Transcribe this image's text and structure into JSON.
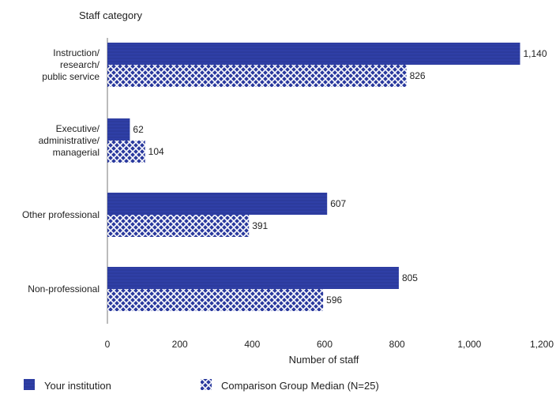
{
  "chart_data": {
    "type": "bar",
    "orientation": "horizontal",
    "ylabel": "Staff category",
    "xlabel": "Number of staff",
    "xlim": [
      0,
      1200
    ],
    "xticks": [
      0,
      200,
      400,
      600,
      800,
      1000,
      1200
    ],
    "xtick_labels": [
      "0",
      "200",
      "400",
      "600",
      "800",
      "1,000",
      "1,200"
    ],
    "categories": [
      [
        "Instruction/",
        "research/",
        "public service"
      ],
      [
        "Executive/",
        "administrative/",
        "managerial"
      ],
      [
        "Other professional"
      ],
      [
        "Non-professional"
      ]
    ],
    "series": [
      {
        "name": "Your institution",
        "values": [
          1140,
          62,
          607,
          805
        ],
        "labels": [
          "1,140",
          "62",
          "607",
          "805"
        ],
        "color": "#2b3a9e",
        "pattern": "solid"
      },
      {
        "name": "Comparison Group Median (N=25)",
        "values": [
          826,
          104,
          391,
          596
        ],
        "labels": [
          "826",
          "104",
          "391",
          "596"
        ],
        "color": "#2b3a9e",
        "pattern": "crosshatch"
      }
    ],
    "grid": false,
    "legend_position": "bottom-left"
  }
}
